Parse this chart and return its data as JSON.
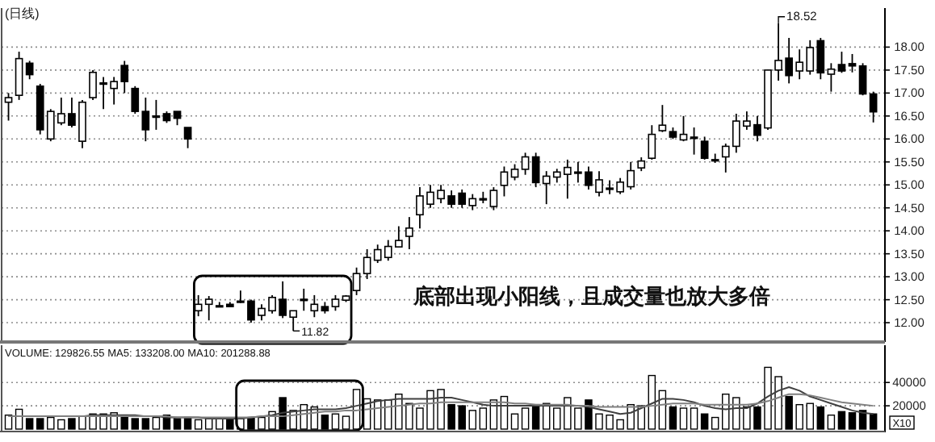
{
  "chart_data": [
    {
      "type": "candlestick",
      "title": "(日线)",
      "color": "#000000",
      "categories": [
        null,
        null,
        null,
        null,
        null,
        null,
        null,
        null,
        null,
        null,
        null,
        null,
        null,
        null,
        null,
        null,
        null,
        null,
        null,
        null,
        null,
        null,
        null,
        null,
        null,
        null,
        null,
        null,
        null,
        null,
        null,
        null,
        null,
        null,
        null,
        null,
        null,
        null,
        null,
        null,
        null,
        null,
        null,
        null,
        null,
        null,
        null,
        null,
        null,
        null,
        null,
        null,
        null,
        null,
        null,
        null,
        null,
        null,
        null,
        null,
        null,
        null,
        null,
        null,
        null,
        null,
        null,
        null,
        null,
        null,
        null,
        null,
        null,
        null,
        null,
        null,
        null,
        null,
        null,
        null,
        null,
        null,
        null
      ],
      "ohlc": [
        [
          16.8,
          17.0,
          16.4,
          16.9
        ],
        [
          16.95,
          17.9,
          16.85,
          17.75
        ],
        [
          17.65,
          17.7,
          17.3,
          17.4
        ],
        [
          17.15,
          17.2,
          16.1,
          16.2
        ],
        [
          16.0,
          16.65,
          15.95,
          16.6
        ],
        [
          16.35,
          16.9,
          16.3,
          16.55
        ],
        [
          16.55,
          16.9,
          16.25,
          16.3
        ],
        [
          15.95,
          16.85,
          15.8,
          16.8
        ],
        [
          16.9,
          17.5,
          16.85,
          17.45
        ],
        [
          17.2,
          17.35,
          16.65,
          17.22
        ],
        [
          17.1,
          17.35,
          16.75,
          17.25
        ],
        [
          17.6,
          17.7,
          17.0,
          17.25
        ],
        [
          17.1,
          17.15,
          16.55,
          16.6
        ],
        [
          16.6,
          16.9,
          15.95,
          16.2
        ],
        [
          16.48,
          16.85,
          16.2,
          16.5
        ],
        [
          16.55,
          16.6,
          16.35,
          16.4
        ],
        [
          16.6,
          16.6,
          16.3,
          16.45
        ],
        [
          16.25,
          16.25,
          15.8,
          16.0
        ],
        [
          12.26,
          12.6,
          12.14,
          12.4
        ],
        [
          12.4,
          12.58,
          12.05,
          12.51
        ],
        [
          12.36,
          12.45,
          12.35,
          12.37
        ],
        [
          12.4,
          12.45,
          12.35,
          12.35
        ],
        [
          12.46,
          12.7,
          12.43,
          12.47
        ],
        [
          12.47,
          12.5,
          12.0,
          12.06
        ],
        [
          12.16,
          12.4,
          12.05,
          12.31
        ],
        [
          12.26,
          12.6,
          12.2,
          12.55
        ],
        [
          12.51,
          12.9,
          12.1,
          12.16
        ],
        [
          12.12,
          12.26,
          11.82,
          12.26
        ],
        [
          12.5,
          12.74,
          12.26,
          12.51
        ],
        [
          12.26,
          12.6,
          12.12,
          12.4
        ],
        [
          12.35,
          12.45,
          12.2,
          12.26
        ],
        [
          12.35,
          12.6,
          12.26,
          12.51
        ],
        [
          12.49,
          12.6,
          12.45,
          12.58
        ],
        [
          12.7,
          13.2,
          12.6,
          13.07
        ],
        [
          13.07,
          13.6,
          12.95,
          13.42
        ],
        [
          13.36,
          13.7,
          13.3,
          13.59
        ],
        [
          13.42,
          13.8,
          13.35,
          13.66
        ],
        [
          13.65,
          14.1,
          13.65,
          13.79
        ],
        [
          13.88,
          14.3,
          13.6,
          14.06
        ],
        [
          14.35,
          14.95,
          14.05,
          14.76
        ],
        [
          14.58,
          15.0,
          14.5,
          14.84
        ],
        [
          14.7,
          15.0,
          14.6,
          14.88
        ],
        [
          14.76,
          14.88,
          14.5,
          14.58
        ],
        [
          14.82,
          14.9,
          14.5,
          14.58
        ],
        [
          14.55,
          14.8,
          14.45,
          14.7
        ],
        [
          14.68,
          14.85,
          14.6,
          14.7
        ],
        [
          14.53,
          14.95,
          14.45,
          14.88
        ],
        [
          14.99,
          15.4,
          14.75,
          15.28
        ],
        [
          15.17,
          15.45,
          15.1,
          15.34
        ],
        [
          15.34,
          15.7,
          15.22,
          15.61
        ],
        [
          15.61,
          15.7,
          14.95,
          15.05
        ],
        [
          15.03,
          15.3,
          14.58,
          15.19
        ],
        [
          15.17,
          15.35,
          15.05,
          15.28
        ],
        [
          15.23,
          15.55,
          14.7,
          15.38
        ],
        [
          15.27,
          15.5,
          15.05,
          15.28
        ],
        [
          15.28,
          15.4,
          14.9,
          14.99
        ],
        [
          14.84,
          15.3,
          14.75,
          15.11
        ],
        [
          14.92,
          15.1,
          14.8,
          14.93
        ],
        [
          14.85,
          15.15,
          14.8,
          15.06
        ],
        [
          14.96,
          15.5,
          14.9,
          15.31
        ],
        [
          15.37,
          15.6,
          15.3,
          15.52
        ],
        [
          15.58,
          16.3,
          15.55,
          16.1
        ],
        [
          16.18,
          16.74,
          16.15,
          16.3
        ],
        [
          16.16,
          16.25,
          16.0,
          16.04
        ],
        [
          15.98,
          16.5,
          15.95,
          16.1
        ],
        [
          16.03,
          16.25,
          15.66,
          16.04
        ],
        [
          15.95,
          16.05,
          15.55,
          15.58
        ],
        [
          15.54,
          15.68,
          15.48,
          15.55
        ],
        [
          15.61,
          15.9,
          15.27,
          15.84
        ],
        [
          15.84,
          16.55,
          15.7,
          16.39
        ],
        [
          16.28,
          16.6,
          16.2,
          16.39
        ],
        [
          16.31,
          16.5,
          15.95,
          16.08
        ],
        [
          16.24,
          17.5,
          16.2,
          17.5
        ],
        [
          17.5,
          18.52,
          17.27,
          17.71
        ],
        [
          17.76,
          18.2,
          17.21,
          17.38
        ],
        [
          17.48,
          17.95,
          17.3,
          17.67
        ],
        [
          17.48,
          18.15,
          17.4,
          17.99
        ],
        [
          18.14,
          18.2,
          17.3,
          17.44
        ],
        [
          17.41,
          17.65,
          17.03,
          17.52
        ],
        [
          17.62,
          17.9,
          17.44,
          17.48
        ],
        [
          17.64,
          17.85,
          17.45,
          17.59
        ],
        [
          17.59,
          17.65,
          16.95,
          16.98
        ],
        [
          16.98,
          17.03,
          16.36,
          16.59
        ]
      ],
      "ylim": [
        11.65,
        18.85
      ],
      "yticks": [
        {
          "value": 12,
          "label": "12.00"
        },
        {
          "value": 12.5,
          "label": "12.50"
        },
        {
          "value": 13,
          "label": "13.00"
        },
        {
          "value": 13.5,
          "label": "13.50"
        },
        {
          "value": 14,
          "label": "14.00"
        },
        {
          "value": 14.5,
          "label": "14.50"
        },
        {
          "value": 15,
          "label": "15.00"
        },
        {
          "value": 15.5,
          "label": "15.50"
        },
        {
          "value": 16,
          "label": "16.00"
        },
        {
          "value": 16.5,
          "label": "16.50"
        },
        {
          "value": 17,
          "label": "17.00"
        },
        {
          "value": 17.5,
          "label": "17.50"
        },
        {
          "value": 18,
          "label": "18.00"
        }
      ],
      "grid": "y",
      "tick_labels": "y",
      "annotations": [
        "底部出现小阳线，且成交量也放大多倍",
        "18.52",
        "11.82"
      ]
    },
    {
      "type": "bar",
      "categories": [
        null,
        null,
        null,
        null,
        null,
        null,
        null,
        null,
        null,
        null,
        null,
        null,
        null,
        null,
        null,
        null,
        null,
        null,
        null,
        null,
        null,
        null,
        null,
        null,
        null,
        null,
        null,
        null,
        null,
        null,
        null,
        null,
        null,
        null,
        null,
        null,
        null,
        null,
        null,
        null,
        null,
        null,
        null,
        null,
        null,
        null,
        null,
        null,
        null,
        null,
        null,
        null,
        null,
        null,
        null,
        null,
        null,
        null,
        null,
        null,
        null,
        null,
        null,
        null,
        null,
        null,
        null,
        null,
        null,
        null,
        null,
        null,
        null,
        null,
        null,
        null,
        null,
        null,
        null,
        null,
        null,
        null,
        null
      ],
      "series": [
        {
          "type": "bar",
          "values": [
            12000,
            17000,
            9000,
            9000,
            10000,
            8000,
            9000,
            11000,
            13000,
            13000,
            14000,
            12000,
            9000,
            9000,
            10000,
            12000,
            9000,
            10000,
            8000,
            9000,
            9000,
            8000,
            9000,
            10000,
            10000,
            15000,
            27000,
            16000,
            21000,
            19000,
            12000,
            13000,
            11000,
            34000,
            26000,
            25000,
            25000,
            30000,
            22000,
            18000,
            33000,
            34000,
            21000,
            20000,
            16000,
            18000,
            25000,
            28000,
            13000,
            18000,
            21000,
            22000,
            18000,
            27000,
            18000,
            25000,
            13000,
            12000,
            8000,
            21000,
            20000,
            46000,
            33000,
            19000,
            18000,
            18000,
            13000,
            10000,
            30000,
            27000,
            19000,
            19000,
            53000,
            45000,
            28000,
            21000,
            22000,
            19000,
            12000,
            15000,
            14000,
            16000,
            13000
          ],
          "colors": [
            "#ffffff",
            "#ffffff",
            "#000000",
            "#000000",
            "#ffffff",
            "#ffffff",
            "#000000",
            "#ffffff",
            "#ffffff",
            "#ffffff",
            "#ffffff",
            "#000000",
            "#000000",
            "#000000",
            "#ffffff",
            "#000000",
            "#000000",
            "#000000",
            "#ffffff",
            "#ffffff",
            "#ffffff",
            "#000000",
            "#ffffff",
            "#000000",
            "#ffffff",
            "#ffffff",
            "#000000",
            "#ffffff",
            "#ffffff",
            "#ffffff",
            "#000000",
            "#ffffff",
            "#ffffff",
            "#ffffff",
            "#ffffff",
            "#ffffff",
            "#ffffff",
            "#ffffff",
            "#ffffff",
            "#ffffff",
            "#ffffff",
            "#ffffff",
            "#000000",
            "#000000",
            "#ffffff",
            "#ffffff",
            "#ffffff",
            "#ffffff",
            "#ffffff",
            "#ffffff",
            "#000000",
            "#ffffff",
            "#ffffff",
            "#ffffff",
            "#ffffff",
            "#000000",
            "#ffffff",
            "#ffffff",
            "#ffffff",
            "#ffffff",
            "#ffffff",
            "#ffffff",
            "#ffffff",
            "#000000",
            "#ffffff",
            "#ffffff",
            "#000000",
            "#ffffff",
            "#ffffff",
            "#ffffff",
            "#ffffff",
            "#000000",
            "#ffffff",
            "#ffffff",
            "#000000",
            "#ffffff",
            "#ffffff",
            "#000000",
            "#ffffff",
            "#000000",
            "#000000",
            "#000000",
            "#000000"
          ]
        },
        {
          "type": "line",
          "color": "#404040",
          "values": [
            11000,
            11000,
            11000,
            11000,
            11000,
            11000,
            11000,
            11000,
            12000,
            12000,
            12000,
            12000,
            12000,
            11000,
            11000,
            10000,
            10000,
            10000,
            10000,
            9000,
            9000,
            9000,
            9000,
            10000,
            11000,
            12000,
            14000,
            15000,
            16000,
            17000,
            17000,
            17000,
            18000,
            20000,
            22000,
            24000,
            25000,
            26000,
            26000,
            26000,
            26000,
            27000,
            27000,
            25000,
            23000,
            21000,
            20000,
            20000,
            20000,
            20000,
            20000,
            20000,
            20000,
            20000,
            20000,
            19000,
            17000,
            15000,
            13000,
            14000,
            18000,
            22000,
            26000,
            26000,
            25000,
            23000,
            20000,
            18000,
            17000,
            18000,
            18000,
            22000,
            28000,
            33000,
            36000,
            33000,
            28000,
            25000,
            22000,
            19000,
            16000,
            14000,
            13000
          ]
        },
        {
          "type": "line",
          "color": "#808080",
          "values": [
            11000,
            11000,
            11000,
            11000,
            11000,
            11000,
            11000,
            11000,
            11000,
            11000,
            11000,
            11000,
            11000,
            11000,
            11000,
            11000,
            10000,
            10000,
            10000,
            10000,
            10000,
            10000,
            10000,
            10000,
            11000,
            11000,
            11000,
            12000,
            13000,
            14000,
            15000,
            15000,
            16000,
            16000,
            17000,
            18000,
            19000,
            20000,
            21000,
            22000,
            22000,
            23000,
            23000,
            23000,
            23000,
            23000,
            23000,
            23000,
            22000,
            22000,
            21000,
            21000,
            21000,
            21000,
            20000,
            20000,
            19000,
            19000,
            19000,
            19000,
            19000,
            20000,
            21000,
            22000,
            22000,
            22000,
            21000,
            21000,
            21000,
            21000,
            21000,
            22000,
            24000,
            27000,
            30000,
            30000,
            29000,
            27000,
            25000,
            23000,
            22000,
            21000,
            20000
          ]
        }
      ],
      "ylim": [
        0,
        72000
      ],
      "yticks": [
        20000,
        40000
      ],
      "grid": "y",
      "tick_labels": "y",
      "annotations": [
        "VOLUME: 129826.55 MA5: 133208.00 MA10: 201288.88",
        "X10"
      ]
    }
  ]
}
